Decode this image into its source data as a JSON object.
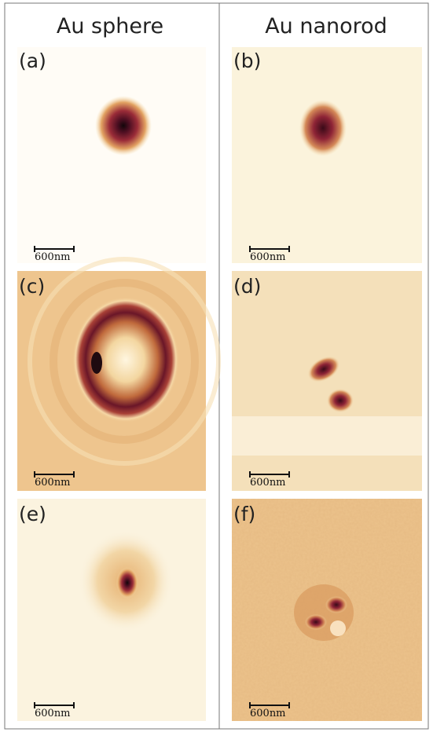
{
  "columns": [
    "Au sphere",
    "Au nanorod"
  ],
  "panels": [
    {
      "label": "(a)",
      "scale_bar": "600nm"
    },
    {
      "label": "(b)",
      "scale_bar": "600nm"
    },
    {
      "label": "(c)",
      "scale_bar": "600nm"
    },
    {
      "label": "(d)",
      "scale_bar": "600nm"
    },
    {
      "label": "(e)",
      "scale_bar": "600nm"
    },
    {
      "label": "(f)",
      "scale_bar": "600nm"
    }
  ]
}
